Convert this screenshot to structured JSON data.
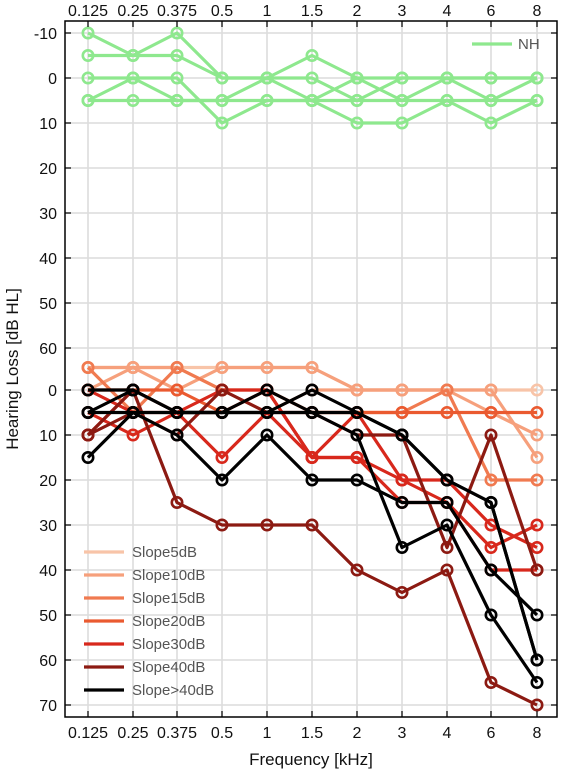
{
  "chart_data": {
    "type": "line",
    "xlabel": "Frequency [kHz]",
    "ylabel": "Hearing Loss [dB HL]",
    "x_tick_labels": [
      "0.125",
      "0.25",
      "0.375",
      "0.5",
      "1",
      "1.5",
      "2",
      "3",
      "4",
      "6",
      "8"
    ],
    "upper_panel": {
      "y_tick_labels": [
        "-10",
        "0",
        "10",
        "20",
        "30",
        "40",
        "50",
        "60"
      ],
      "y_values": [
        -10,
        0,
        10,
        20,
        30,
        40,
        50,
        60
      ],
      "legend": [
        {
          "label": "NH",
          "color": "#8ee88e"
        }
      ],
      "series": [
        {
          "name": "NH",
          "color": "#8ee88e",
          "values": [
            -10,
            -5,
            -10,
            0,
            0,
            -5,
            0,
            0,
            0,
            0,
            0
          ]
        },
        {
          "name": "NH",
          "color": "#8ee88e",
          "values": [
            -5,
            -5,
            -5,
            0,
            0,
            0,
            5,
            5,
            0,
            5,
            0
          ]
        },
        {
          "name": "NH",
          "color": "#8ee88e",
          "values": [
            0,
            0,
            0,
            10,
            5,
            5,
            10,
            10,
            5,
            10,
            5
          ]
        },
        {
          "name": "NH",
          "color": "#8ee88e",
          "values": [
            5,
            5,
            5,
            5,
            0,
            5,
            5,
            0,
            0,
            0,
            0
          ]
        },
        {
          "name": "NH",
          "color": "#8ee88e",
          "values": [
            5,
            0,
            5,
            5,
            5,
            5,
            0,
            5,
            5,
            5,
            5
          ]
        }
      ]
    },
    "lower_panel": {
      "y_tick_labels": [
        "0",
        "10",
        "20",
        "30",
        "40",
        "50",
        "60",
        "70"
      ],
      "y_values": [
        0,
        10,
        20,
        30,
        40,
        50,
        60,
        70
      ],
      "legend": [
        {
          "label": "Slope5dB",
          "color": "#f8c4a8"
        },
        {
          "label": "Slope10dB",
          "color": "#f6a07c"
        },
        {
          "label": "Slope15dB",
          "color": "#f07a50"
        },
        {
          "label": "Slope20dB",
          "color": "#ea5a30"
        },
        {
          "label": "Slope30dB",
          "color": "#d8281c"
        },
        {
          "label": "Slope40dB",
          "color": "#8c1a12"
        },
        {
          "label": "Slope>40dB",
          "color": "#000000"
        }
      ],
      "series": [
        {
          "name": "Slope5dB",
          "color": "#f8c4a8",
          "values": [
            -5,
            -5,
            -5,
            -5,
            -5,
            -5,
            0,
            0,
            0,
            0,
            0
          ]
        },
        {
          "name": "Slope10dB",
          "color": "#f6a07c",
          "values": [
            -5,
            -5,
            0,
            -5,
            -5,
            -5,
            0,
            0,
            0,
            5,
            10
          ]
        },
        {
          "name": "Slope10dB",
          "color": "#f6a07c",
          "values": [
            0,
            -5,
            -5,
            0,
            5,
            0,
            0,
            0,
            0,
            0,
            15
          ]
        },
        {
          "name": "Slope15dB",
          "color": "#f07a50",
          "values": [
            -5,
            5,
            -5,
            0,
            0,
            5,
            5,
            5,
            0,
            20,
            20
          ]
        },
        {
          "name": "Slope20dB",
          "color": "#ea5a30",
          "values": [
            0,
            0,
            0,
            5,
            0,
            5,
            5,
            5,
            5,
            5,
            5
          ]
        },
        {
          "name": "Slope30dB",
          "color": "#d8281c",
          "values": [
            5,
            10,
            5,
            15,
            5,
            15,
            15,
            20,
            20,
            30,
            35
          ]
        },
        {
          "name": "Slope30dB",
          "color": "#d8281c",
          "values": [
            0,
            5,
            5,
            5,
            0,
            15,
            5,
            20,
            25,
            35,
            30
          ]
        },
        {
          "name": "Slope30dB",
          "color": "#d8281c",
          "values": [
            10,
            0,
            5,
            0,
            0,
            15,
            15,
            25,
            25,
            40,
            40
          ]
        },
        {
          "name": "Slope40dB",
          "color": "#8c1a12",
          "values": [
            10,
            0,
            25,
            30,
            30,
            30,
            40,
            45,
            40,
            65,
            70
          ]
        },
        {
          "name": "Slope40dB",
          "color": "#8c1a12",
          "values": [
            10,
            5,
            10,
            0,
            5,
            5,
            10,
            10,
            35,
            10,
            40
          ]
        },
        {
          "name": "Slope>40dB",
          "color": "#000000",
          "values": [
            0,
            0,
            5,
            5,
            5,
            0,
            5,
            10,
            20,
            25,
            60
          ]
        },
        {
          "name": "Slope>40dB",
          "color": "#000000",
          "values": [
            5,
            5,
            10,
            20,
            10,
            20,
            20,
            25,
            25,
            40,
            50
          ]
        },
        {
          "name": "Slope>40dB",
          "color": "#000000",
          "values": [
            15,
            5,
            5,
            5,
            5,
            5,
            10,
            35,
            30,
            50,
            65
          ]
        },
        {
          "name": "Slope>40dB",
          "color": "#000000",
          "values": [
            5,
            0,
            5,
            5,
            0,
            5,
            5,
            10,
            20,
            25,
            60
          ]
        }
      ]
    },
    "grid": true,
    "legend_placement": {
      "upper": "top-right",
      "lower": "bottom-left"
    }
  }
}
